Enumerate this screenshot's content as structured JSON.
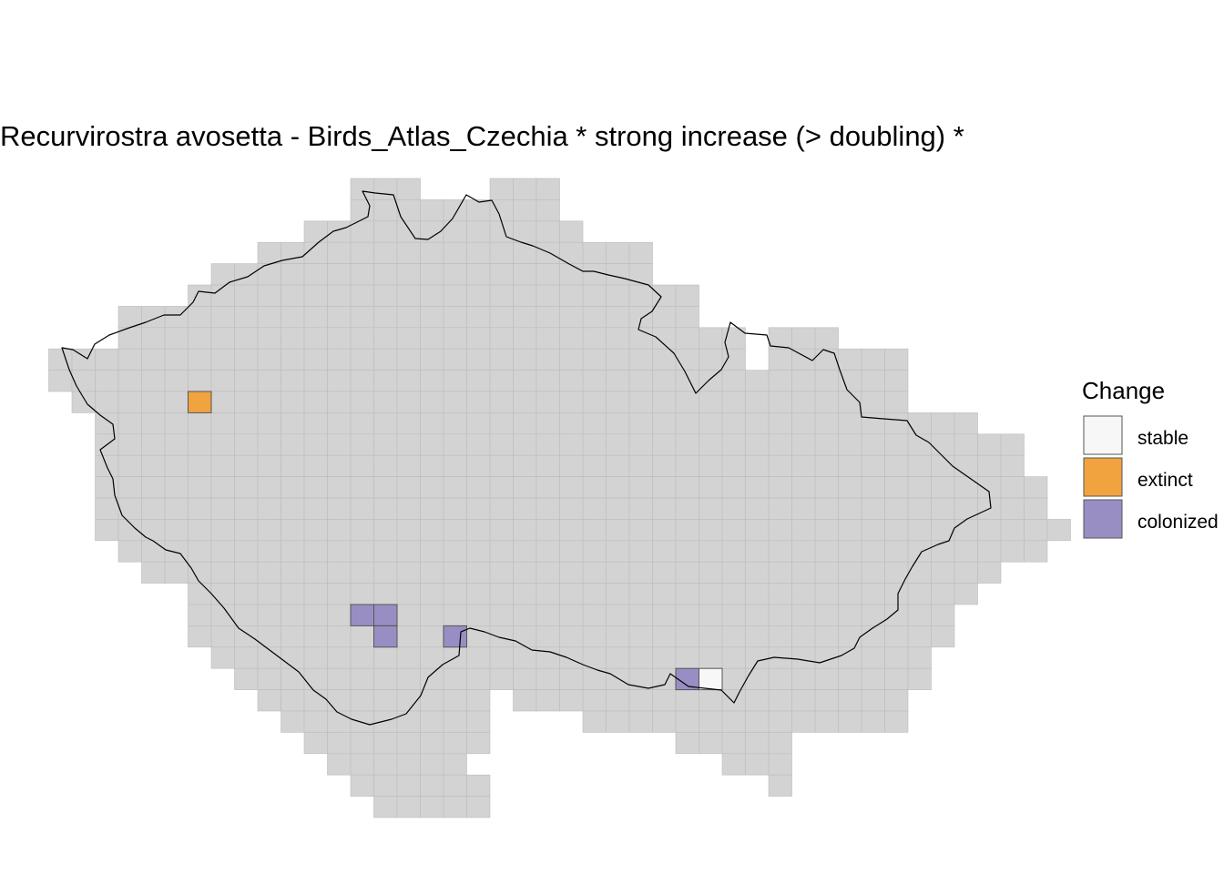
{
  "title": "Recurvirostra avosetta - Birds_Atlas_Czechia * strong increase (> doubling) *",
  "legend": {
    "title": "Change",
    "items": [
      {
        "key": "stable",
        "label": "stable",
        "color": "#f7f7f7"
      },
      {
        "key": "extinct",
        "label": "extinct",
        "color": "#f1a340"
      },
      {
        "key": "colonized",
        "label": "colonized",
        "color": "#998ec3"
      }
    ]
  },
  "colors": {
    "grid_fill": "#d3d3d3",
    "grid_line": "#bdbdbd",
    "border": "#000000"
  },
  "grid": {
    "note": "atlas squares; row index counted top to bottom, columns counted left to right",
    "rows": [
      {
        "row": 0,
        "runs": [
          [
            13,
            15
          ],
          [
            19,
            21
          ]
        ]
      },
      {
        "row": 1,
        "runs": [
          [
            13,
            21
          ]
        ]
      },
      {
        "row": 2,
        "runs": [
          [
            11,
            22
          ]
        ]
      },
      {
        "row": 3,
        "runs": [
          [
            9,
            25
          ]
        ]
      },
      {
        "row": 4,
        "runs": [
          [
            7,
            25
          ]
        ]
      },
      {
        "row": 5,
        "runs": [
          [
            6,
            27
          ]
        ]
      },
      {
        "row": 6,
        "runs": [
          [
            3,
            27
          ]
        ]
      },
      {
        "row": 7,
        "runs": [
          [
            3,
            29
          ],
          [
            31,
            33
          ]
        ]
      },
      {
        "row": 8,
        "runs": [
          [
            0,
            29
          ],
          [
            31,
            36
          ]
        ]
      },
      {
        "row": 9,
        "runs": [
          [
            0,
            36
          ]
        ]
      },
      {
        "row": 10,
        "runs": [
          [
            1,
            36
          ]
        ]
      },
      {
        "row": 11,
        "runs": [
          [
            2,
            39
          ]
        ]
      },
      {
        "row": 12,
        "runs": [
          [
            2,
            41
          ]
        ]
      },
      {
        "row": 13,
        "runs": [
          [
            2,
            41
          ]
        ]
      },
      {
        "row": 14,
        "runs": [
          [
            2,
            42
          ]
        ]
      },
      {
        "row": 15,
        "runs": [
          [
            2,
            42
          ]
        ]
      },
      {
        "row": 16,
        "runs": [
          [
            2,
            43
          ]
        ]
      },
      {
        "row": 17,
        "runs": [
          [
            3,
            42
          ]
        ]
      },
      {
        "row": 18,
        "runs": [
          [
            4,
            40
          ]
        ]
      },
      {
        "row": 19,
        "runs": [
          [
            6,
            39
          ]
        ]
      },
      {
        "row": 20,
        "runs": [
          [
            6,
            38
          ]
        ]
      },
      {
        "row": 21,
        "runs": [
          [
            6,
            38
          ]
        ]
      },
      {
        "row": 22,
        "runs": [
          [
            7,
            37
          ]
        ]
      },
      {
        "row": 23,
        "runs": [
          [
            8,
            37
          ]
        ]
      },
      {
        "row": 24,
        "runs": [
          [
            9,
            18
          ],
          [
            20,
            36
          ]
        ]
      },
      {
        "row": 25,
        "runs": [
          [
            10,
            18
          ],
          [
            23,
            36
          ]
        ]
      },
      {
        "row": 26,
        "runs": [
          [
            11,
            18
          ],
          [
            27,
            31
          ]
        ]
      },
      {
        "row": 27,
        "runs": [
          [
            12,
            17
          ],
          [
            29,
            31
          ]
        ]
      },
      {
        "row": 28,
        "runs": [
          [
            13,
            18
          ],
          [
            31,
            31
          ]
        ]
      },
      {
        "row": 29,
        "runs": [
          [
            14,
            18
          ]
        ]
      }
    ],
    "status_cells": [
      {
        "row": 10,
        "col": 6,
        "status": "extinct"
      },
      {
        "row": 20,
        "col": 13,
        "status": "colonized"
      },
      {
        "row": 20,
        "col": 14,
        "status": "colonized"
      },
      {
        "row": 21,
        "col": 14,
        "status": "colonized"
      },
      {
        "row": 21,
        "col": 17,
        "status": "colonized"
      },
      {
        "row": 23,
        "col": 27,
        "status": "colonized"
      },
      {
        "row": 23,
        "col": 28,
        "status": "stable"
      }
    ]
  }
}
